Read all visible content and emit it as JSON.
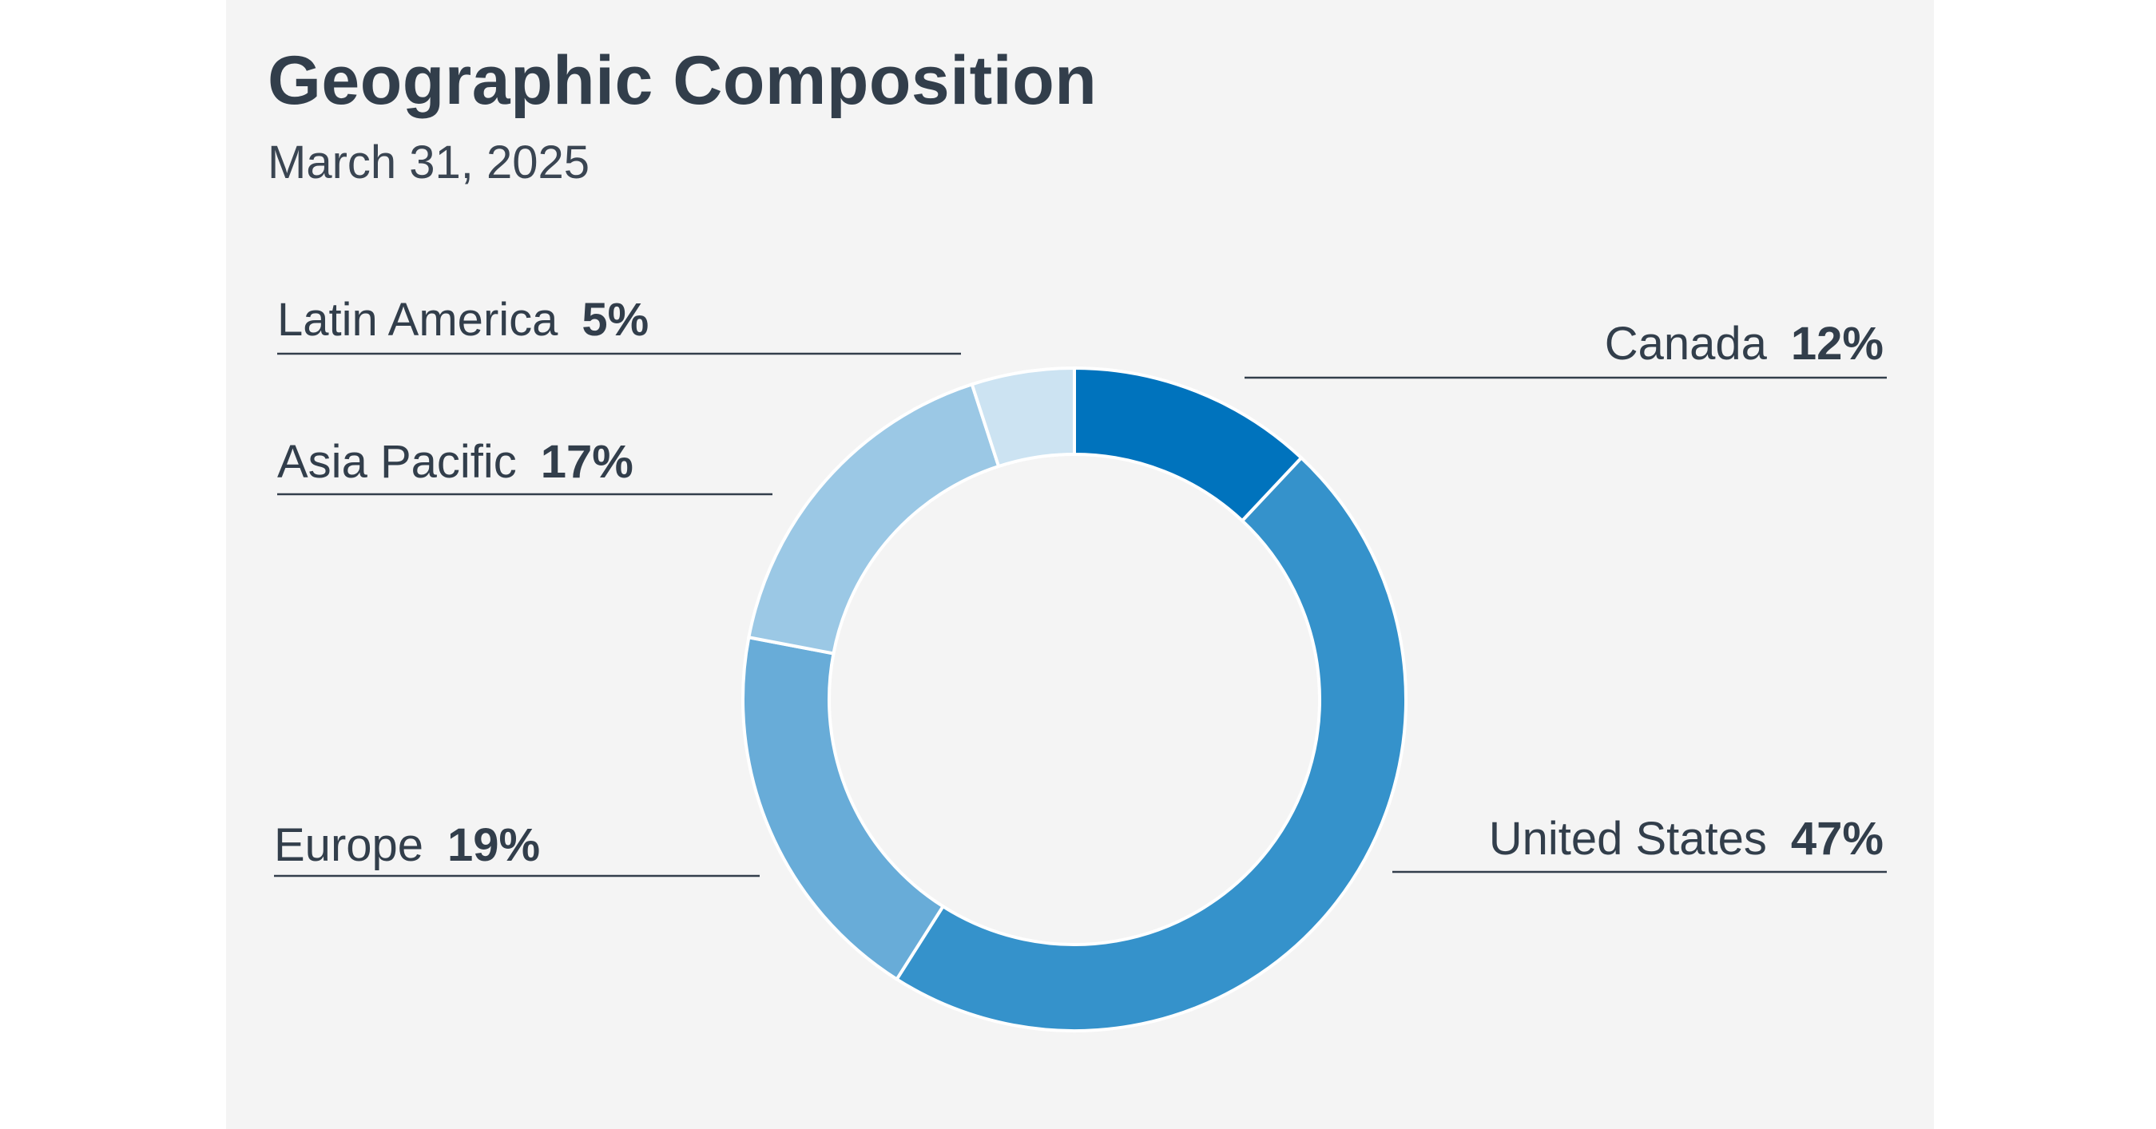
{
  "chart_data": {
    "type": "pie",
    "variant": "donut",
    "title": "Geographic Composition",
    "subtitle": "March 31, 2025",
    "slices": [
      {
        "name": "Canada",
        "value": 12,
        "label": "12%",
        "color": "#0073bd",
        "label_side": "right"
      },
      {
        "name": "United States",
        "value": 47,
        "label": "47%",
        "color": "#3592cb",
        "label_side": "right"
      },
      {
        "name": "Europe",
        "value": 19,
        "label": "19%",
        "color": "#68acd8",
        "label_side": "left"
      },
      {
        "name": "Asia Pacific",
        "value": 17,
        "label": "17%",
        "color": "#9bc8e5",
        "label_side": "left"
      },
      {
        "name": "Latin America",
        "value": 5,
        "label": "5%",
        "color": "#cce3f2",
        "label_side": "left"
      }
    ],
    "start": "top",
    "direction": "clockwise",
    "legend": "none"
  },
  "colors": {
    "background": "#ffffff",
    "panel": "#f4f4f4",
    "text": "#323e4b",
    "leader_line": "#323e4b",
    "slice_separator": "#ffffff"
  }
}
